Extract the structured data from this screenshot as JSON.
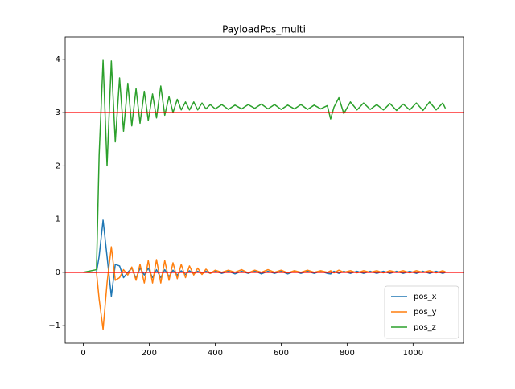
{
  "chart_data": {
    "type": "line",
    "title": "PayloadPos_multi",
    "x": [
      0,
      40,
      48,
      60,
      72,
      85,
      97,
      110,
      122,
      135,
      147,
      160,
      172,
      185,
      197,
      210,
      222,
      235,
      247,
      260,
      272,
      285,
      297,
      310,
      322,
      335,
      347,
      360,
      372,
      385,
      400,
      420,
      440,
      460,
      480,
      500,
      520,
      540,
      560,
      580,
      600,
      620,
      640,
      660,
      680,
      700,
      720,
      740,
      750,
      760,
      775,
      790,
      810,
      830,
      850,
      870,
      890,
      910,
      930,
      950,
      970,
      990,
      1010,
      1030,
      1050,
      1070,
      1090,
      1098
    ],
    "series": [
      {
        "name": "pos_x",
        "color": "#1f77b4",
        "values": [
          0,
          0,
          0.3,
          0.98,
          0.3,
          -0.45,
          0.15,
          0.12,
          -0.1,
          0.0,
          0.08,
          -0.12,
          0.08,
          -0.05,
          0.08,
          -0.1,
          0.05,
          -0.1,
          0.05,
          -0.08,
          0.04,
          -0.05,
          0.03,
          -0.04,
          0.03,
          -0.03,
          0.02,
          -0.03,
          0.02,
          -0.02,
          0.02,
          -0.02,
          0.02,
          -0.03,
          0.02,
          -0.02,
          0.03,
          -0.03,
          0.02,
          -0.02,
          0.02,
          -0.03,
          0.02,
          -0.02,
          0.02,
          -0.02,
          0.02,
          -0.02,
          -0.03,
          0.02,
          -0.02,
          0.02,
          -0.02,
          0.02,
          -0.02,
          0.02,
          -0.02,
          0.02,
          -0.02,
          0.02,
          -0.02,
          0.02,
          -0.02,
          0.02,
          -0.02,
          0.02,
          -0.02,
          0.0
        ]
      },
      {
        "name": "pos_y",
        "color": "#ff7f0e",
        "values": [
          0,
          0,
          -0.5,
          -1.07,
          -0.2,
          0.48,
          -0.15,
          -0.1,
          0.05,
          -0.05,
          0.1,
          -0.15,
          0.15,
          -0.2,
          0.22,
          -0.2,
          0.24,
          -0.2,
          0.22,
          -0.15,
          0.18,
          -0.12,
          0.15,
          -0.1,
          0.12,
          -0.05,
          0.08,
          -0.04,
          0.06,
          -0.02,
          0.04,
          0.0,
          0.04,
          0.0,
          0.05,
          -0.01,
          0.04,
          0.0,
          0.05,
          0.0,
          0.04,
          -0.01,
          0.03,
          0.0,
          0.04,
          0.0,
          0.03,
          0.0,
          0.03,
          -0.01,
          0.04,
          0.0,
          0.03,
          -0.01,
          0.03,
          0.0,
          0.03,
          -0.01,
          0.03,
          0.0,
          0.03,
          -0.01,
          0.03,
          0.0,
          0.03,
          -0.01,
          0.03,
          0.01
        ]
      },
      {
        "name": "pos_z",
        "color": "#2ca02c",
        "values": [
          0,
          0.05,
          2.2,
          3.98,
          2.0,
          3.97,
          2.45,
          3.65,
          2.65,
          3.55,
          2.75,
          3.45,
          2.8,
          3.4,
          2.85,
          3.35,
          2.9,
          3.5,
          2.95,
          3.3,
          3.0,
          3.25,
          3.05,
          3.2,
          3.05,
          3.2,
          3.05,
          3.18,
          3.07,
          3.15,
          3.07,
          3.15,
          3.06,
          3.14,
          3.07,
          3.15,
          3.08,
          3.16,
          3.07,
          3.15,
          3.06,
          3.14,
          3.07,
          3.15,
          3.06,
          3.14,
          3.07,
          3.13,
          2.88,
          3.1,
          3.28,
          2.98,
          3.2,
          3.05,
          3.18,
          3.06,
          3.15,
          3.05,
          3.17,
          3.04,
          3.16,
          3.05,
          3.18,
          3.04,
          3.2,
          3.05,
          3.18,
          3.08
        ]
      }
    ],
    "hlines": [
      {
        "value": 0,
        "color": "#ff0000"
      },
      {
        "value": 3,
        "color": "#ff0000"
      }
    ],
    "xlim": [
      -54.9,
      1152.9
    ],
    "ylim": [
      -1.33,
      4.42
    ],
    "xticks": [
      0,
      200,
      400,
      600,
      800,
      1000
    ],
    "yticks": [
      {
        "value": -1,
        "label": "−1"
      },
      0,
      1,
      2,
      3,
      4
    ],
    "legend": "lower right"
  }
}
